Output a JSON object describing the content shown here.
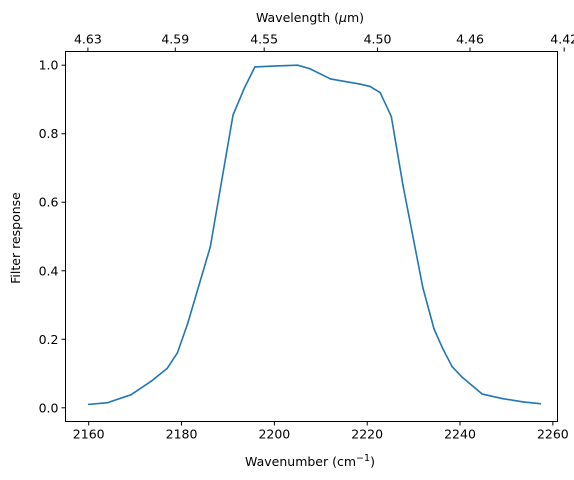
{
  "chart_data": {
    "type": "line",
    "title": "",
    "xlabel": "Wavenumber (cm",
    "xlabel_superscript": "−1",
    "xlabel_suffix": ")",
    "ylabel": "Filter response",
    "top_xlabel": "Wavelength (",
    "top_xlabel_mu": "μ",
    "top_xlabel_suffix": "m)",
    "xlim": [
      2155,
      2261
    ],
    "ylim": [
      -0.04,
      1.04
    ],
    "grid": false,
    "x_ticks": [
      2160,
      2180,
      2200,
      2220,
      2240,
      2260
    ],
    "x_tick_labels": [
      "2160",
      "2180",
      "2200",
      "2220",
      "2240",
      "2260"
    ],
    "y_ticks": [
      0.0,
      0.2,
      0.4,
      0.6,
      0.8,
      1.0
    ],
    "y_tick_labels": [
      "0.0",
      "0.2",
      "0.4",
      "0.6",
      "0.8",
      "1.0"
    ],
    "top_ticks_wavelength": [
      4.63,
      4.59,
      4.55,
      4.5,
      4.46,
      4.42
    ],
    "top_tick_labels": [
      "4.63",
      "4.59",
      "4.55",
      "4.50",
      "4.46",
      "4.42"
    ],
    "series": [
      {
        "color": "#1f77b4",
        "x": [
          2160.0,
          2164.1,
          2169.1,
          2173.5,
          2176.9,
          2179.1,
          2181.3,
          2186.2,
          2191.1,
          2193.6,
          2195.8,
          2200.4,
          2205.0,
          2207.6,
          2212.1,
          2218.4,
          2220.6,
          2222.8,
          2225.2,
          2227.7,
          2232.0,
          2234.4,
          2236.2,
          2238.3,
          2240.4,
          2244.8,
          2249.1,
          2253.6,
          2257.3
        ],
        "y": [
          0.01,
          0.015,
          0.038,
          0.078,
          0.115,
          0.16,
          0.245,
          0.47,
          0.855,
          0.935,
          0.995,
          0.998,
          1.0,
          0.99,
          0.96,
          0.945,
          0.938,
          0.92,
          0.85,
          0.65,
          0.35,
          0.23,
          0.175,
          0.12,
          0.09,
          0.04,
          0.027,
          0.017,
          0.012
        ]
      }
    ]
  }
}
